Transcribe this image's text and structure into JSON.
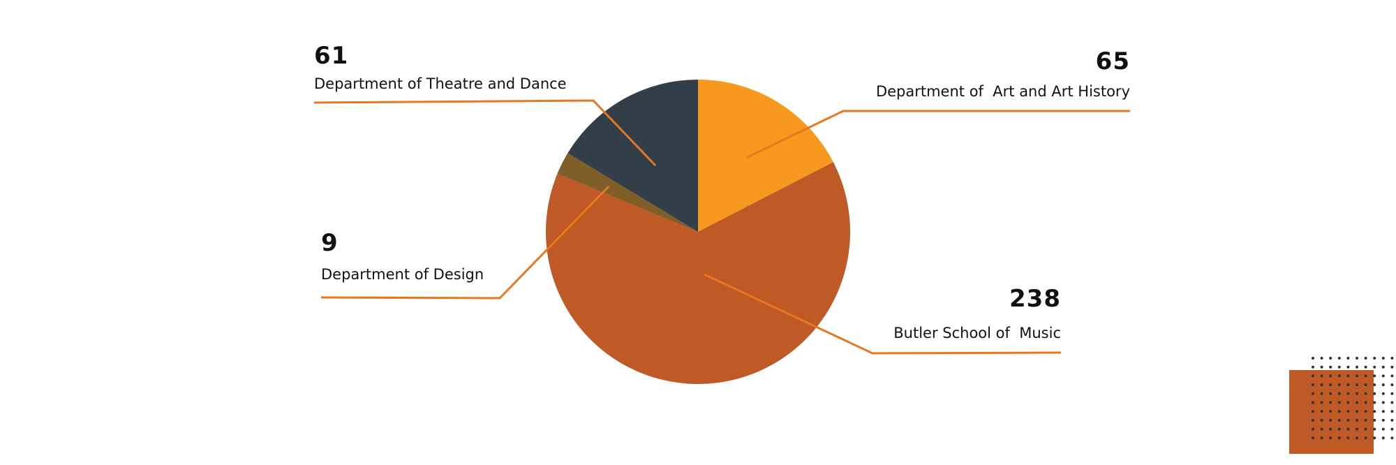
{
  "chart_data": {
    "type": "pie",
    "start_angle_deg": 0,
    "direction": "clockwise",
    "slices": [
      {
        "label": "Department of  Art and Art History",
        "value": 65,
        "color": "#F7981F"
      },
      {
        "label": "Butler School of  Music",
        "value": 238,
        "color": "#BF5A27"
      },
      {
        "label": "Department of Design",
        "value": 9,
        "color": "#7F5E28"
      },
      {
        "label": "Department of Theatre and Dance",
        "value": 61,
        "color": "#333F48"
      }
    ],
    "leader_line_color": "#E87722"
  },
  "decoration": {
    "square_color": "#BF5A27",
    "dot_color": "#333333"
  }
}
